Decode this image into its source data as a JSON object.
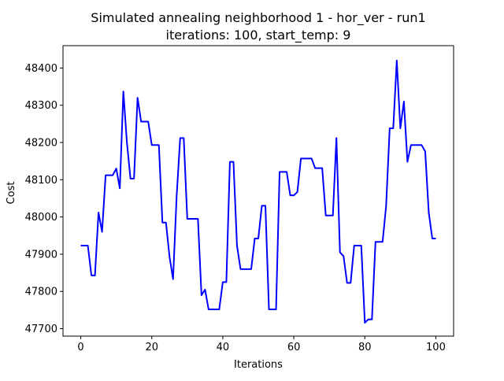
{
  "chart_data": {
    "type": "line",
    "title_line1": "Simulated annealing neighborhood 1 - hor_ver - run1",
    "title_line2": "iterations: 100, start_temp: 9",
    "xlabel": "Iterations",
    "ylabel": "Cost",
    "xlim": [
      -5,
      105
    ],
    "ylim": [
      47680,
      48460
    ],
    "xticks": [
      0,
      20,
      40,
      60,
      80,
      100
    ],
    "yticks": [
      47700,
      47800,
      47900,
      48000,
      48100,
      48200,
      48300,
      48400
    ],
    "line_color": "#0000ff",
    "grid": false,
    "series": [
      {
        "x": [
          0,
          1,
          2,
          3,
          4,
          5,
          6,
          7,
          8,
          9,
          10,
          11,
          12,
          13,
          14,
          15,
          16,
          17,
          18,
          19,
          20,
          21,
          22,
          23,
          24,
          25,
          26,
          27,
          28,
          29,
          30,
          31,
          32,
          33,
          34,
          35,
          36,
          37,
          38,
          39,
          40,
          41,
          42,
          43,
          44,
          45,
          46,
          47,
          48,
          49,
          50,
          51,
          52,
          53,
          54,
          55,
          56,
          57,
          58,
          59,
          60,
          61,
          62,
          63,
          64,
          65,
          66,
          67,
          68,
          69,
          70,
          71,
          72,
          73,
          74,
          75,
          76,
          77,
          78,
          79,
          80,
          81,
          82,
          83,
          84,
          85,
          86,
          87,
          88,
          89,
          90,
          91,
          92,
          93,
          94,
          95,
          96,
          97,
          98,
          99,
          100
        ],
        "values": [
          47923,
          47923,
          47923,
          47843,
          47843,
          48012,
          47960,
          48112,
          48112,
          48112,
          48130,
          48077,
          48337,
          48200,
          48103,
          48103,
          48320,
          48256,
          48256,
          48256,
          48193,
          48193,
          48193,
          47985,
          47985,
          47893,
          47833,
          48055,
          48212,
          48212,
          47995,
          47995,
          47995,
          47995,
          47790,
          47805,
          47752,
          47752,
          47752,
          47752,
          47825,
          47825,
          48148,
          48148,
          47923,
          47860,
          47860,
          47860,
          47860,
          47942,
          47942,
          48030,
          48030,
          47752,
          47752,
          47752,
          48121,
          48121,
          48121,
          48058,
          48058,
          48067,
          48157,
          48157,
          48157,
          48157,
          48131,
          48131,
          48131,
          48004,
          48004,
          48004,
          48212,
          47905,
          47895,
          47823,
          47823,
          47923,
          47923,
          47923,
          47716,
          47725,
          47725,
          47933,
          47933,
          47933,
          48030,
          48238,
          48238,
          48420,
          48238,
          48310,
          48148,
          48193,
          48193,
          48193,
          48193,
          48176,
          48012,
          47942,
          47942
        ]
      }
    ]
  }
}
